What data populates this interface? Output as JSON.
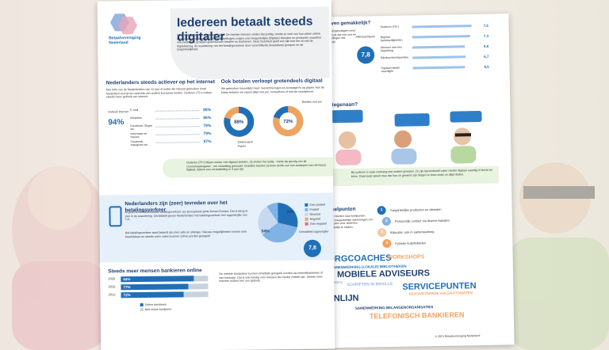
{
  "front": {
    "logo": "Betaalvereniging Nederland",
    "title": "Iedereen betaalt steeds digitaler",
    "intro": "Het betalingsverkeer digitaliseert snel. De meeste mensen vinden dat prettig, omdat ze veel van hun zaken online kunnen regelen. Banken en betaalinstellingen zorgen voor toegankelijke (digitale) diensten en producten waardoor ook kwetsbare groepen goed kunnen betalen en bankieren. Deze factsheet geeft een kijk hoe het zit met de digitalisering, de waardering van het betalingsverkeer door verschillende (kwetsbare) groepen en de toegankelijkheid.",
    "internet": {
      "heading": "Nederlanders steeds actiever op het internet",
      "text": "Met 94% van de Nederlanders van 12 jaar of ouder die internet gebruiken loopt Nederland voorop ten opzichte van andere Europese landen. Ouderen (75+) maken steeds meer gebruik van internet.",
      "total": "94%",
      "total_label": "Gebruik internet",
      "items": [
        {
          "label": "E-mail",
          "value": "89%"
        },
        {
          "label": "Winkelen",
          "value": "86%"
        },
        {
          "label": "Facebook, Skype etc.",
          "value": "79%"
        },
        {
          "label": "Informatie en nieuws",
          "value": "79%"
        },
        {
          "label": "Facebook, Instagram etc.",
          "value": "87%"
        }
      ]
    },
    "payments": {
      "heading": "Ook betalen verloopt grotendeels digitaal",
      "text": "We gebruiken nauwelijks meer overschrijvingen en Acceptgiro's op papier. Aan de kassa betalen we vrijwel altijd met pin, contactloos of met de smartphone.",
      "donuts": [
        {
          "value": "88%",
          "labels": [
            "Elektronisch",
            "Papier"
          ]
        },
        {
          "value": "72%",
          "labels": [
            "Betalen met pin"
          ]
        }
      ]
    },
    "band": "Ouderen (75+) blijven achter met digitaal betalen. Zij vinden het lastig - mede als gevolg van de coronamaatregelen - om inhaalslag gemaakt. Instellels betalen zij twee derde van hun aankopen aan de kassa digitaal, tijdens een verdubbeling in 3 jaar tijd.",
    "satisfaction": {
      "heading": "Nederlanders zijn (zeer) tevreden over het betalingsverkeer",
      "text": "Al jaren is het Nederlandse betalingsverkeer van perceptuele grote binnen Europa. Dat is terug te zien in de waardering. Gemiddeld geven Nederlanders het betalingsverkeer een rapportcijfer van 7,8.",
      "text2": "Het betalingsverkeer staat bekend als snel, safe en strenger. Nieuwe mogelijkheden komen snel beschikbaar en steeds meer zaken kunnen online worden geregeld.",
      "slices": [
        "34%",
        "54%"
      ],
      "legend": [
        "Zeer positief",
        "Positief",
        "Neutraal",
        "Negatief",
        "Zeer negatief"
      ],
      "score": "7,8",
      "score_label": "Gemiddeld rapportcijfer"
    },
    "online": {
      "heading": "Steeds meer mensen bankieren online",
      "years": [
        "2020",
        "2016",
        "2012"
      ],
      "values": [
        84,
        77,
        72
      ],
      "value_labels": [
        "84%",
        "77%",
        "72%"
      ],
      "legend": [
        "Online bankieren",
        "Niet online bankieren"
      ],
      "text": "De meeste bankzaken kunnen inmiddels geregeld worden via internetbankieren of een bankapp. Dat is ook handig voor mensen die minder mobiel zijn. Steeds meer mensen maken hier van gebruik."
    }
  },
  "back": {
    "heading": "en even gemakkelijk?",
    "text": "De uitkeringsnuttigen rond ons gebruik dat met ons en ontwikkelingen dat gemiddeld.",
    "score": "7,8",
    "score_label": "Allemaal bijeen",
    "rows": [
      {
        "label": "Ouderen (75+)",
        "value": 7.5,
        "value_label": "7,5"
      },
      {
        "label": "Beperkt taalvaardigheden",
        "value": 7.3,
        "value_label": "7,3"
      },
      {
        "label": "Mensen met een beperking",
        "value": 6.6,
        "value_label": "6,6"
      },
      {
        "label": "Blinden/slechtzienden",
        "value": 6.7,
        "value_label": "6,7"
      },
      {
        "label": "Digitaal minder vaardigen",
        "value": 6.6,
        "value_label": "6,6"
      }
    ],
    "issues": "oal tegenaan?",
    "note": "Bij ouderen is vaak voorrang met andere groepen. Zo zijn bijvoorbeeld vaker minder digitaal vaardig of slecht ter been. Daarnaast speelt mee dat hun ze gewend zijn dingen te doen zoals ze altijd deden.",
    "solutions": "r knelpunten",
    "solutions_text": "Banken bieden naar knelpunten diverse toegankelijke oplossingen om het betalen voor iedereen gemakkelijk te maken.",
    "list": [
      {
        "n": "1",
        "t": "Toegankelijke producten en diensten"
      },
      {
        "n": "2",
        "t": "Persoonlijk contact via diverse kanalen"
      },
      {
        "n": "3",
        "t": "Educatie, ook in samenwerking"
      },
      {
        "n": "4",
        "t": "Fysieke hulpmiddelen"
      }
    ],
    "cloud": [
      "ZORGCOACHES",
      "WORKSHOPS",
      "SAMENWERKING (LOKALE) BIBLIOTHEKEN",
      "MOBIELE ADVISEURS",
      "GRAMMA'S",
      "SCHRIFTEN IN BRAILLE",
      "SERVICEPUNTEN",
      "GEASSISTEERDE GELDAUTOMATEN",
      "DRENLIJN",
      "SAMENWERKING BELANGENORGANISATIES",
      "TELEFONISCH BANKIEREN"
    ],
    "copyright": "© 2021 Betaalvereniging Nederland"
  }
}
